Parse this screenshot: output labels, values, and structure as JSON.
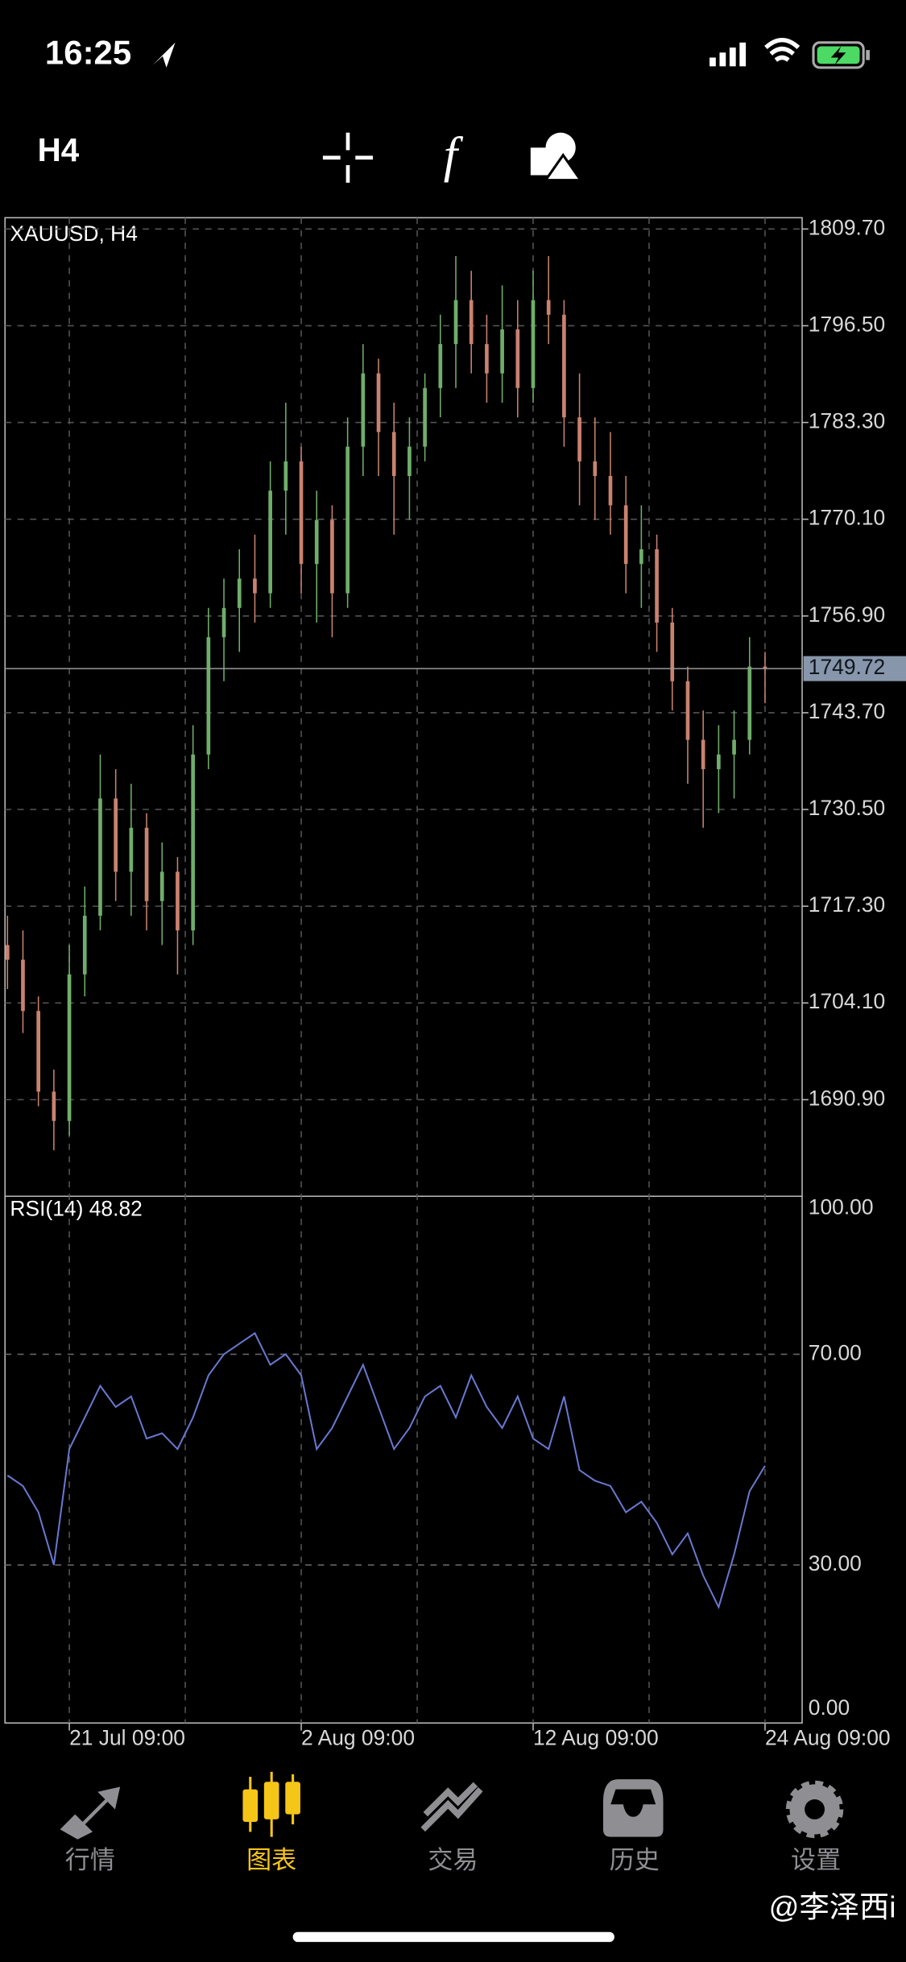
{
  "status_bar": {
    "time": "16:25"
  },
  "toolbar": {
    "timeframe": "H4"
  },
  "chart_data": [
    {
      "type": "candlestick",
      "title": "XAUUSD, H4",
      "up_color": "#6fae6a",
      "down_color": "#c9826f",
      "grid": true,
      "ylim": [
        1677.73,
        1811.24
      ],
      "yticks": [
        {
          "value": 1690.9,
          "label": "1690.90"
        },
        {
          "value": 1704.1,
          "label": "1704.10"
        },
        {
          "value": 1717.3,
          "label": "1717.30"
        },
        {
          "value": 1730.5,
          "label": "1730.50"
        },
        {
          "value": 1743.7,
          "label": "1743.70"
        },
        {
          "value": 1756.9,
          "label": "1756.90"
        },
        {
          "value": 1770.1,
          "label": "1770.10"
        },
        {
          "value": 1783.3,
          "label": "1783.30"
        },
        {
          "value": 1796.5,
          "label": "1796.50"
        },
        {
          "value": 1809.7,
          "label": "1809.70"
        }
      ],
      "current_price": {
        "value": 1749.72,
        "label": "1749.72"
      },
      "xlim": [
        -0.16,
        51.4
      ],
      "xticks": [
        {
          "value": 4,
          "label": "21 Jul 09:00"
        },
        {
          "value": 19,
          "label": "2 Aug 09:00"
        },
        {
          "value": 34,
          "label": "12 Aug 09:00"
        },
        {
          "value": 49,
          "label": "24 Aug 09:00"
        }
      ],
      "candles": [
        [
          1712,
          1716,
          1706,
          1710
        ],
        [
          1710,
          1714,
          1700,
          1703
        ],
        [
          1703,
          1705,
          1690,
          1692
        ],
        [
          1692,
          1695,
          1684,
          1688
        ],
        [
          1688,
          1712,
          1686,
          1708
        ],
        [
          1708,
          1720,
          1705,
          1716
        ],
        [
          1716,
          1738,
          1714,
          1732
        ],
        [
          1732,
          1736,
          1718,
          1722
        ],
        [
          1722,
          1734,
          1716,
          1728
        ],
        [
          1728,
          1730,
          1714,
          1718
        ],
        [
          1718,
          1726,
          1712,
          1722
        ],
        [
          1722,
          1724,
          1708,
          1714
        ],
        [
          1714,
          1742,
          1712,
          1738
        ],
        [
          1738,
          1758,
          1736,
          1754
        ],
        [
          1754,
          1762,
          1748,
          1758
        ],
        [
          1758,
          1766,
          1752,
          1762
        ],
        [
          1762,
          1768,
          1756,
          1760
        ],
        [
          1760,
          1778,
          1758,
          1774
        ],
        [
          1774,
          1786,
          1768,
          1778
        ],
        [
          1778,
          1780,
          1760,
          1764
        ],
        [
          1764,
          1774,
          1756,
          1770
        ],
        [
          1770,
          1772,
          1754,
          1760
        ],
        [
          1760,
          1784,
          1758,
          1780
        ],
        [
          1780,
          1794,
          1776,
          1790
        ],
        [
          1790,
          1792,
          1776,
          1782
        ],
        [
          1782,
          1786,
          1768,
          1776
        ],
        [
          1776,
          1784,
          1770,
          1780
        ],
        [
          1780,
          1790,
          1778,
          1788
        ],
        [
          1788,
          1798,
          1784,
          1794
        ],
        [
          1794,
          1806,
          1788,
          1800
        ],
        [
          1800,
          1804,
          1790,
          1794
        ],
        [
          1794,
          1798,
          1786,
          1790
        ],
        [
          1790,
          1802,
          1786,
          1796
        ],
        [
          1796,
          1800,
          1784,
          1788
        ],
        [
          1788,
          1804,
          1786,
          1800
        ],
        [
          1800,
          1806,
          1794,
          1798
        ],
        [
          1798,
          1800,
          1780,
          1784
        ],
        [
          1784,
          1790,
          1772,
          1778
        ],
        [
          1778,
          1784,
          1770,
          1776
        ],
        [
          1776,
          1782,
          1768,
          1772
        ],
        [
          1772,
          1776,
          1760,
          1764
        ],
        [
          1764,
          1772,
          1758,
          1766
        ],
        [
          1766,
          1768,
          1752,
          1756
        ],
        [
          1756,
          1758,
          1744,
          1748
        ],
        [
          1748,
          1750,
          1734,
          1740
        ],
        [
          1740,
          1744,
          1728,
          1736
        ],
        [
          1736,
          1742,
          1730,
          1738
        ],
        [
          1738,
          1744,
          1732,
          1740
        ],
        [
          1740,
          1754,
          1738,
          1750
        ],
        [
          1750,
          1752,
          1745,
          1749.72
        ]
      ]
    },
    {
      "type": "line",
      "title": "RSI(14) 48.82",
      "color": "#6878d0",
      "ylim": [
        0,
        100
      ],
      "yticks": [
        {
          "value": 0,
          "label": "0.00"
        },
        {
          "value": 30,
          "label": "30.00"
        },
        {
          "value": 70,
          "label": "70.00"
        },
        {
          "value": 100,
          "label": "100.00"
        }
      ],
      "values": [
        47,
        45,
        40,
        30,
        52,
        58,
        64,
        60,
        62,
        54,
        55,
        52,
        58,
        66,
        70,
        72,
        74,
        68,
        70,
        66,
        52,
        56,
        62,
        68,
        60,
        52,
        56,
        62,
        64,
        58,
        66,
        60,
        56,
        62,
        54,
        52,
        62,
        48,
        46,
        45,
        40,
        42,
        38,
        32,
        36,
        28,
        22,
        32,
        44,
        48.82
      ]
    }
  ],
  "tabs": [
    {
      "label": "行情"
    },
    {
      "label": "图表"
    },
    {
      "label": "交易"
    },
    {
      "label": "历史"
    },
    {
      "label": "设置"
    }
  ],
  "active_tab": 1,
  "watermark": "@李泽西i"
}
